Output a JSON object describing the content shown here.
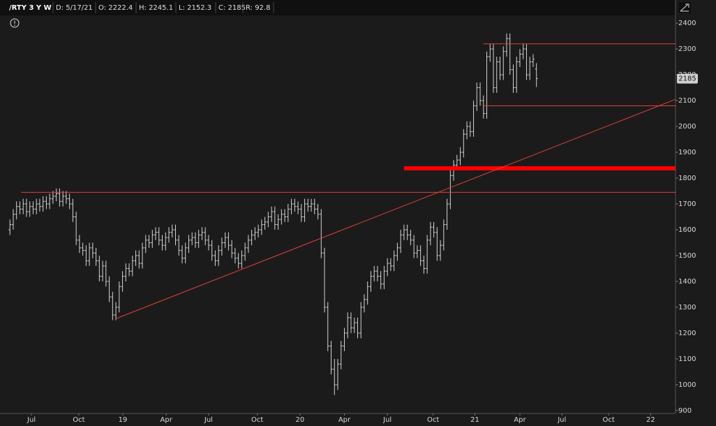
{
  "header": {
    "symbol": "/RTY 3 Y W",
    "date": "D: 5/17/21",
    "open": "O: 2222.4",
    "high": "H: 2245.1",
    "low": "L: 2152.3",
    "close": "C: 2185",
    "range": "R: 92.8"
  },
  "chart_data": {
    "type": "ohlc",
    "color": "#d4d4d4",
    "last_price": 2185,
    "xlim": [
      -3,
      201
    ],
    "ylim": [
      889,
      2430
    ],
    "yticks": [
      900,
      1000,
      1100,
      1200,
      1300,
      1400,
      1500,
      1600,
      1700,
      1800,
      1900,
      2000,
      2100,
      2200,
      2300,
      2400
    ],
    "xticks": [
      {
        "value": 6.5,
        "label": "Jul"
      },
      {
        "value": 20.8,
        "label": "Oct"
      },
      {
        "value": 34.1,
        "label": "19"
      },
      {
        "value": 47.2,
        "label": "Apr"
      },
      {
        "value": 60,
        "label": "Jul"
      },
      {
        "value": 74.7,
        "label": "Oct"
      },
      {
        "value": 87.6,
        "label": "20"
      },
      {
        "value": 101,
        "label": "Apr"
      },
      {
        "value": 114,
        "label": "Jul"
      },
      {
        "value": 127.8,
        "label": "Oct"
      },
      {
        "value": 140.4,
        "label": "21"
      },
      {
        "value": 154,
        "label": "Apr"
      },
      {
        "value": 166.7,
        "label": "Jul"
      },
      {
        "value": 180.8,
        "label": "Oct"
      },
      {
        "value": 193.5,
        "label": "22"
      }
    ],
    "drawings": [
      {
        "color": "#e0403a",
        "width": 1,
        "x1": 3.4,
        "y1": 1745,
        "x2": 201,
        "y2": 1745
      },
      {
        "color": "#e0403a",
        "width": 1,
        "x1": 143,
        "y1": 2320,
        "x2": 201,
        "y2": 2320
      },
      {
        "color": "#e0403a",
        "width": 1,
        "x1": 143,
        "y1": 2080,
        "x2": 201,
        "y2": 2080
      },
      {
        "color": "#ff0000",
        "width": 6,
        "x1": 119,
        "y1": 1838,
        "x2": 201,
        "y2": 1838
      },
      {
        "color": "#e0403a",
        "width": 1,
        "x1": 31.8,
        "y1": 1255,
        "x2": 201,
        "y2": 2105
      }
    ],
    "bars": [
      [
        1600,
        1640,
        1580,
        1620
      ],
      [
        1620,
        1680,
        1600,
        1660
      ],
      [
        1660,
        1710,
        1640,
        1690
      ],
      [
        1690,
        1710,
        1660,
        1680
      ],
      [
        1680,
        1720,
        1660,
        1700
      ],
      [
        1700,
        1720,
        1650,
        1670
      ],
      [
        1670,
        1710,
        1650,
        1690
      ],
      [
        1690,
        1710,
        1660,
        1680
      ],
      [
        1680,
        1720,
        1660,
        1700
      ],
      [
        1700,
        1720,
        1670,
        1690
      ],
      [
        1690,
        1730,
        1670,
        1710
      ],
      [
        1710,
        1730,
        1680,
        1700
      ],
      [
        1700,
        1740,
        1680,
        1720
      ],
      [
        1720,
        1750,
        1700,
        1730
      ],
      [
        1730,
        1760,
        1710,
        1740
      ],
      [
        1740,
        1760,
        1690,
        1710
      ],
      [
        1710,
        1750,
        1690,
        1730
      ],
      [
        1730,
        1750,
        1700,
        1720
      ],
      [
        1720,
        1740,
        1680,
        1700
      ],
      [
        1700,
        1720,
        1630,
        1650
      ],
      [
        1650,
        1670,
        1540,
        1560
      ],
      [
        1560,
        1580,
        1510,
        1530
      ],
      [
        1530,
        1550,
        1500,
        1520
      ],
      [
        1520,
        1540,
        1460,
        1480
      ],
      [
        1480,
        1550,
        1460,
        1530
      ],
      [
        1530,
        1550,
        1490,
        1510
      ],
      [
        1510,
        1530,
        1460,
        1480
      ],
      [
        1480,
        1500,
        1400,
        1420
      ],
      [
        1420,
        1480,
        1400,
        1460
      ],
      [
        1460,
        1480,
        1380,
        1400
      ],
      [
        1400,
        1420,
        1320,
        1340
      ],
      [
        1340,
        1360,
        1250,
        1270
      ],
      [
        1270,
        1320,
        1250,
        1300
      ],
      [
        1300,
        1400,
        1280,
        1380
      ],
      [
        1380,
        1440,
        1360,
        1420
      ],
      [
        1420,
        1470,
        1400,
        1450
      ],
      [
        1450,
        1470,
        1420,
        1440
      ],
      [
        1440,
        1500,
        1420,
        1480
      ],
      [
        1480,
        1520,
        1460,
        1500
      ],
      [
        1500,
        1520,
        1450,
        1470
      ],
      [
        1470,
        1550,
        1450,
        1530
      ],
      [
        1530,
        1580,
        1510,
        1560
      ],
      [
        1560,
        1580,
        1530,
        1550
      ],
      [
        1550,
        1600,
        1530,
        1580
      ],
      [
        1580,
        1610,
        1560,
        1590
      ],
      [
        1590,
        1610,
        1540,
        1560
      ],
      [
        1560,
        1580,
        1520,
        1540
      ],
      [
        1540,
        1590,
        1520,
        1570
      ],
      [
        1570,
        1610,
        1550,
        1590
      ],
      [
        1590,
        1620,
        1570,
        1600
      ],
      [
        1600,
        1620,
        1540,
        1560
      ],
      [
        1560,
        1580,
        1500,
        1520
      ],
      [
        1520,
        1540,
        1470,
        1490
      ],
      [
        1490,
        1550,
        1470,
        1530
      ],
      [
        1530,
        1580,
        1510,
        1560
      ],
      [
        1560,
        1590,
        1540,
        1570
      ],
      [
        1570,
        1590,
        1530,
        1550
      ],
      [
        1550,
        1600,
        1530,
        1580
      ],
      [
        1580,
        1610,
        1560,
        1590
      ],
      [
        1590,
        1610,
        1540,
        1560
      ],
      [
        1560,
        1580,
        1520,
        1540
      ],
      [
        1540,
        1560,
        1480,
        1500
      ],
      [
        1500,
        1520,
        1460,
        1480
      ],
      [
        1480,
        1540,
        1460,
        1520
      ],
      [
        1520,
        1570,
        1500,
        1550
      ],
      [
        1550,
        1590,
        1530,
        1570
      ],
      [
        1570,
        1590,
        1520,
        1540
      ],
      [
        1540,
        1560,
        1490,
        1510
      ],
      [
        1510,
        1530,
        1470,
        1490
      ],
      [
        1490,
        1510,
        1450,
        1470
      ],
      [
        1470,
        1520,
        1450,
        1500
      ],
      [
        1500,
        1550,
        1480,
        1530
      ],
      [
        1530,
        1580,
        1510,
        1560
      ],
      [
        1560,
        1600,
        1540,
        1580
      ],
      [
        1580,
        1610,
        1560,
        1590
      ],
      [
        1590,
        1620,
        1570,
        1600
      ],
      [
        1600,
        1640,
        1580,
        1620
      ],
      [
        1620,
        1650,
        1600,
        1630
      ],
      [
        1630,
        1670,
        1610,
        1650
      ],
      [
        1650,
        1690,
        1630,
        1670
      ],
      [
        1670,
        1690,
        1600,
        1620
      ],
      [
        1620,
        1660,
        1600,
        1640
      ],
      [
        1640,
        1680,
        1620,
        1660
      ],
      [
        1660,
        1680,
        1630,
        1650
      ],
      [
        1650,
        1700,
        1630,
        1680
      ],
      [
        1680,
        1720,
        1660,
        1700
      ],
      [
        1700,
        1720,
        1670,
        1690
      ],
      [
        1690,
        1710,
        1660,
        1680
      ],
      [
        1680,
        1700,
        1630,
        1650
      ],
      [
        1650,
        1720,
        1630,
        1700
      ],
      [
        1700,
        1720,
        1670,
        1690
      ],
      [
        1690,
        1720,
        1670,
        1700
      ],
      [
        1700,
        1720,
        1660,
        1680
      ],
      [
        1680,
        1700,
        1640,
        1660
      ],
      [
        1660,
        1680,
        1490,
        1510
      ],
      [
        1510,
        1530,
        1280,
        1300
      ],
      [
        1300,
        1320,
        1130,
        1150
      ],
      [
        1150,
        1170,
        1040,
        1060
      ],
      [
        1060,
        1100,
        960,
        1000
      ],
      [
        1000,
        1100,
        980,
        1080
      ],
      [
        1080,
        1170,
        1060,
        1150
      ],
      [
        1150,
        1220,
        1130,
        1200
      ],
      [
        1200,
        1280,
        1180,
        1260
      ],
      [
        1260,
        1280,
        1200,
        1220
      ],
      [
        1220,
        1260,
        1200,
        1240
      ],
      [
        1240,
        1260,
        1180,
        1200
      ],
      [
        1200,
        1320,
        1180,
        1300
      ],
      [
        1300,
        1350,
        1280,
        1330
      ],
      [
        1330,
        1400,
        1310,
        1380
      ],
      [
        1380,
        1440,
        1360,
        1420
      ],
      [
        1420,
        1460,
        1400,
        1440
      ],
      [
        1440,
        1460,
        1400,
        1420
      ],
      [
        1420,
        1440,
        1370,
        1390
      ],
      [
        1390,
        1460,
        1370,
        1440
      ],
      [
        1440,
        1490,
        1420,
        1470
      ],
      [
        1470,
        1490,
        1440,
        1460
      ],
      [
        1460,
        1520,
        1440,
        1500
      ],
      [
        1500,
        1550,
        1480,
        1530
      ],
      [
        1530,
        1600,
        1510,
        1580
      ],
      [
        1580,
        1620,
        1560,
        1600
      ],
      [
        1600,
        1620,
        1560,
        1580
      ],
      [
        1580,
        1600,
        1540,
        1560
      ],
      [
        1560,
        1580,
        1490,
        1510
      ],
      [
        1510,
        1540,
        1490,
        1520
      ],
      [
        1520,
        1540,
        1460,
        1480
      ],
      [
        1480,
        1500,
        1430,
        1450
      ],
      [
        1450,
        1580,
        1430,
        1560
      ],
      [
        1560,
        1630,
        1540,
        1610
      ],
      [
        1610,
        1630,
        1570,
        1590
      ],
      [
        1590,
        1610,
        1480,
        1500
      ],
      [
        1500,
        1560,
        1480,
        1540
      ],
      [
        1540,
        1640,
        1520,
        1620
      ],
      [
        1620,
        1720,
        1600,
        1700
      ],
      [
        1700,
        1830,
        1680,
        1810
      ],
      [
        1810,
        1870,
        1790,
        1850
      ],
      [
        1850,
        1890,
        1830,
        1870
      ],
      [
        1870,
        1920,
        1850,
        1900
      ],
      [
        1900,
        1990,
        1880,
        1970
      ],
      [
        1970,
        2020,
        1950,
        2000
      ],
      [
        2000,
        2020,
        1960,
        1980
      ],
      [
        1980,
        2100,
        1960,
        2080
      ],
      [
        2080,
        2170,
        2060,
        2150
      ],
      [
        2150,
        2170,
        2080,
        2100
      ],
      [
        2100,
        2120,
        2030,
        2050
      ],
      [
        2050,
        2290,
        2030,
        2270
      ],
      [
        2270,
        2320,
        2250,
        2300
      ],
      [
        2300,
        2320,
        2130,
        2150
      ],
      [
        2150,
        2270,
        2130,
        2250
      ],
      [
        2250,
        2270,
        2180,
        2200
      ],
      [
        2200,
        2310,
        2180,
        2290
      ],
      [
        2290,
        2360,
        2270,
        2340
      ],
      [
        2340,
        2360,
        2200,
        2220
      ],
      [
        2220,
        2240,
        2130,
        2150
      ],
      [
        2150,
        2270,
        2130,
        2250
      ],
      [
        2250,
        2300,
        2230,
        2280
      ],
      [
        2280,
        2320,
        2260,
        2300
      ],
      [
        2300,
        2320,
        2180,
        2200
      ],
      [
        2200,
        2270,
        2180,
        2250
      ],
      [
        2250,
        2280,
        2230,
        2260
      ],
      [
        2222.4,
        2245.1,
        2152.3,
        2185
      ]
    ]
  }
}
